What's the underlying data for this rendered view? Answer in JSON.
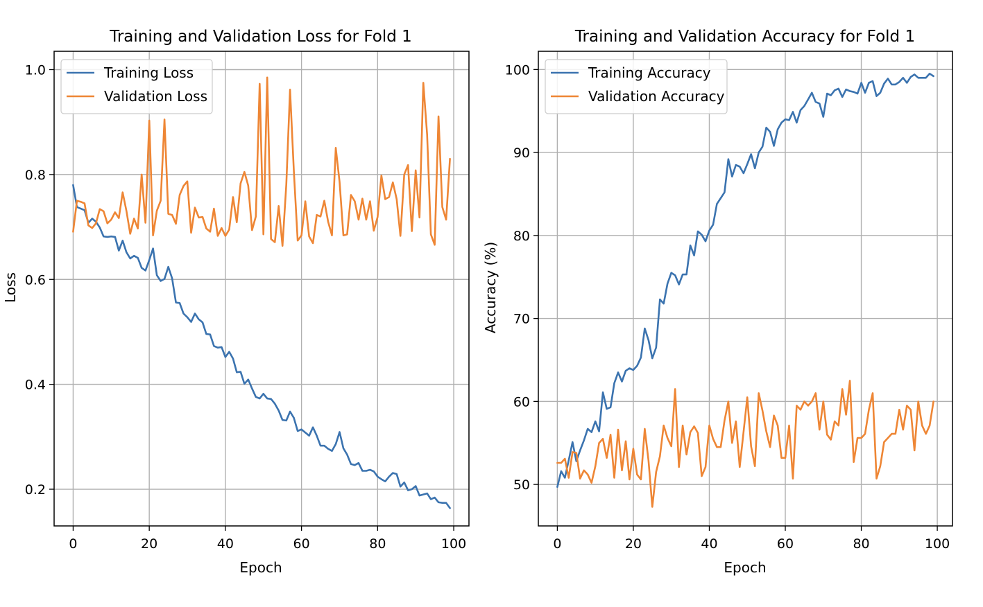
{
  "colors": {
    "training": "#3b73af",
    "validation": "#ee8635",
    "grid": "#b0b0b0"
  },
  "chart_data": [
    {
      "type": "line",
      "title": "Training and Validation Loss for Fold 1",
      "xlabel": "Epoch",
      "ylabel": "Loss",
      "xlim": [
        -5,
        104
      ],
      "ylim": [
        0.13,
        1.035
      ],
      "xticks": [
        0,
        20,
        40,
        60,
        80,
        100
      ],
      "xtick_labels": [
        "0",
        "20",
        "40",
        "60",
        "80",
        "100"
      ],
      "yticks": [
        0.2,
        0.4,
        0.6,
        0.8,
        1.0
      ],
      "ytick_labels": [
        "0.2",
        "0.4",
        "0.6",
        "0.8",
        "1.0"
      ],
      "grid": true,
      "legend_position": "top-left",
      "series": [
        {
          "name": "Training Loss",
          "color": "#3b73af",
          "values": [
            0.78,
            0.738,
            0.735,
            0.732,
            0.708,
            0.716,
            0.71,
            0.699,
            0.682,
            0.681,
            0.682,
            0.681,
            0.655,
            0.674,
            0.652,
            0.64,
            0.645,
            0.641,
            0.622,
            0.617,
            0.637,
            0.659,
            0.608,
            0.597,
            0.601,
            0.624,
            0.602,
            0.556,
            0.555,
            0.535,
            0.528,
            0.519,
            0.535,
            0.524,
            0.518,
            0.496,
            0.495,
            0.473,
            0.47,
            0.471,
            0.452,
            0.462,
            0.449,
            0.423,
            0.424,
            0.401,
            0.409,
            0.392,
            0.376,
            0.373,
            0.382,
            0.373,
            0.372,
            0.363,
            0.35,
            0.332,
            0.331,
            0.348,
            0.336,
            0.311,
            0.314,
            0.308,
            0.302,
            0.318,
            0.302,
            0.283,
            0.283,
            0.277,
            0.273,
            0.286,
            0.309,
            0.278,
            0.266,
            0.248,
            0.246,
            0.25,
            0.235,
            0.235,
            0.237,
            0.234,
            0.224,
            0.219,
            0.215,
            0.224,
            0.231,
            0.229,
            0.205,
            0.213,
            0.198,
            0.2,
            0.206,
            0.188,
            0.19,
            0.192,
            0.181,
            0.184,
            0.175,
            0.174,
            0.174,
            0.164
          ]
        },
        {
          "name": "Validation Loss",
          "color": "#ee8635",
          "values": [
            0.691,
            0.75,
            0.748,
            0.745,
            0.703,
            0.698,
            0.707,
            0.734,
            0.73,
            0.707,
            0.714,
            0.728,
            0.717,
            0.766,
            0.731,
            0.687,
            0.716,
            0.697,
            0.8,
            0.708,
            0.903,
            0.684,
            0.731,
            0.75,
            0.905,
            0.725,
            0.723,
            0.706,
            0.761,
            0.778,
            0.787,
            0.689,
            0.737,
            0.718,
            0.719,
            0.697,
            0.691,
            0.735,
            0.683,
            0.698,
            0.683,
            0.695,
            0.757,
            0.709,
            0.783,
            0.805,
            0.779,
            0.694,
            0.72,
            0.973,
            0.686,
            0.985,
            0.677,
            0.671,
            0.74,
            0.664,
            0.781,
            0.962,
            0.806,
            0.674,
            0.684,
            0.749,
            0.682,
            0.669,
            0.723,
            0.72,
            0.75,
            0.71,
            0.684,
            0.851,
            0.786,
            0.684,
            0.686,
            0.761,
            0.749,
            0.714,
            0.754,
            0.714,
            0.749,
            0.693,
            0.719,
            0.798,
            0.753,
            0.757,
            0.785,
            0.753,
            0.683,
            0.8,
            0.818,
            0.692,
            0.808,
            0.718,
            0.975,
            0.876,
            0.686,
            0.666,
            0.911,
            0.738,
            0.714,
            0.83
          ]
        }
      ]
    },
    {
      "type": "line",
      "title": "Training and Validation Accuracy for Fold 1",
      "xlabel": "Epoch",
      "ylabel": "Accuracy (%)",
      "xlim": [
        -5,
        104
      ],
      "ylim": [
        45,
        102.2
      ],
      "xticks": [
        0,
        20,
        40,
        60,
        80,
        100
      ],
      "xtick_labels": [
        "0",
        "20",
        "40",
        "60",
        "80",
        "100"
      ],
      "yticks": [
        50,
        60,
        70,
        80,
        90,
        100
      ],
      "ytick_labels": [
        "50",
        "60",
        "70",
        "80",
        "90",
        "100"
      ],
      "grid": true,
      "legend_position": "top-left",
      "series": [
        {
          "name": "Training Accuracy",
          "color": "#3b73af",
          "values": [
            49.7,
            51.6,
            50.8,
            52.9,
            55.1,
            52.8,
            54.1,
            55.3,
            56.7,
            56.3,
            57.6,
            56.4,
            61.1,
            59.1,
            59.3,
            62.2,
            63.5,
            62.4,
            63.7,
            64.0,
            63.8,
            64.3,
            65.3,
            68.8,
            67.4,
            65.2,
            66.5,
            72.3,
            71.8,
            74.2,
            75.5,
            75.2,
            74.1,
            75.3,
            75.3,
            78.8,
            77.6,
            80.5,
            80.1,
            79.3,
            80.6,
            81.3,
            83.8,
            84.5,
            85.2,
            89.2,
            87.1,
            88.5,
            88.3,
            87.5,
            88.6,
            89.8,
            88.1,
            90.0,
            90.7,
            93.0,
            92.5,
            90.8,
            92.8,
            93.6,
            94.0,
            93.9,
            94.9,
            93.6,
            95.1,
            95.6,
            96.4,
            97.2,
            96.1,
            95.9,
            94.3,
            97.1,
            96.9,
            97.5,
            97.7,
            96.7,
            97.6,
            97.4,
            97.3,
            97.1,
            98.4,
            97.2,
            98.4,
            98.6,
            96.8,
            97.2,
            98.3,
            98.9,
            98.2,
            98.2,
            98.5,
            99.0,
            98.4,
            99.1,
            99.4,
            99.0,
            99.0,
            99.0,
            99.5,
            99.2
          ]
        },
        {
          "name": "Validation Accuracy",
          "color": "#ee8635",
          "values": [
            52.6,
            52.6,
            53.1,
            50.8,
            53.9,
            53.8,
            50.7,
            51.7,
            51.2,
            50.2,
            52.2,
            55.0,
            55.5,
            53.2,
            56.0,
            50.8,
            56.6,
            51.7,
            55.2,
            50.6,
            54.3,
            51.2,
            50.6,
            56.7,
            52.9,
            47.3,
            51.5,
            53.4,
            57.1,
            55.6,
            54.6,
            61.5,
            52.1,
            57.1,
            53.6,
            56.3,
            57.0,
            56.2,
            51.0,
            52.1,
            57.1,
            55.5,
            54.5,
            54.5,
            57.7,
            60.0,
            55.0,
            57.6,
            52.1,
            56.3,
            60.5,
            54.6,
            52.2,
            61.0,
            58.9,
            56.4,
            54.5,
            58.3,
            57.1,
            53.2,
            53.2,
            57.1,
            50.7,
            59.5,
            59.0,
            60.0,
            59.5,
            60.0,
            61.0,
            56.6,
            60.0,
            56.0,
            55.4,
            57.6,
            57.1,
            61.5,
            58.4,
            62.5,
            52.7,
            55.6,
            55.6,
            56.1,
            59.0,
            61.0,
            50.7,
            52.2,
            55.1,
            55.6,
            56.1,
            56.1,
            59.0,
            56.6,
            59.5,
            59.0,
            54.1,
            60.0,
            57.1,
            56.1,
            57.1,
            60.0
          ]
        }
      ]
    }
  ]
}
